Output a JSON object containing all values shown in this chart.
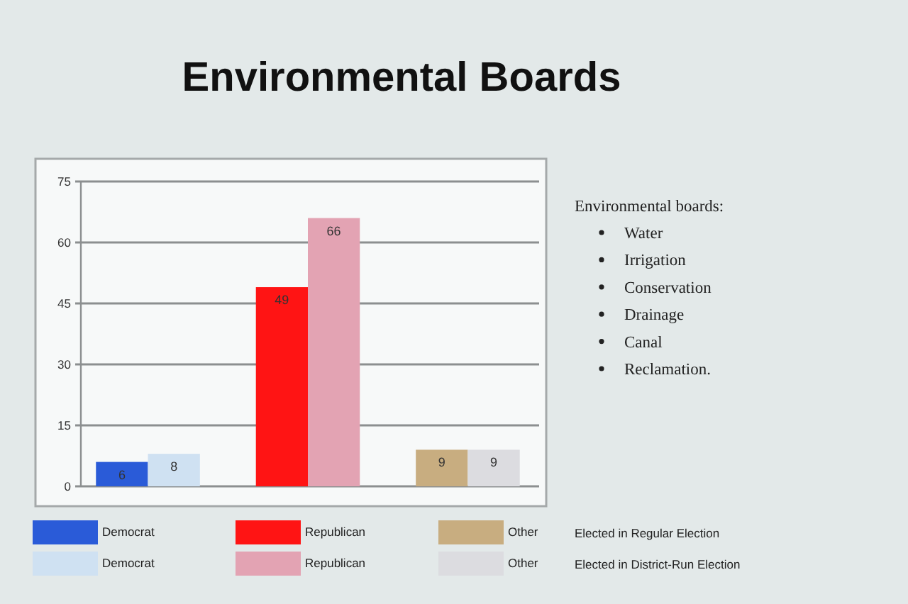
{
  "chart_data": {
    "type": "bar",
    "title": "Environmental Boards",
    "categories": [
      "Democrat",
      "Republican",
      "Other"
    ],
    "series": [
      {
        "name": "Elected in Regular Election",
        "colors": [
          "#2a5bd8",
          "#ff1414",
          "#c8ad80"
        ],
        "values": [
          6,
          49,
          9
        ]
      },
      {
        "name": "Elected in District-Run Election",
        "colors": [
          "#cfe1f2",
          "#e3a3b3",
          "#dcdce0"
        ],
        "values": [
          8,
          66,
          9
        ]
      }
    ],
    "ylim": [
      0,
      75
    ],
    "yticks": [
      0,
      15,
      30,
      45,
      60,
      75
    ],
    "grid": "y",
    "data_labels": true,
    "legend": "bottom",
    "tick_labels": "y",
    "annotations": [
      "Environmental boards:",
      "Water",
      "Irrigation",
      "Conservation",
      "Drainage",
      "Canal",
      "Reclamation."
    ]
  }
}
